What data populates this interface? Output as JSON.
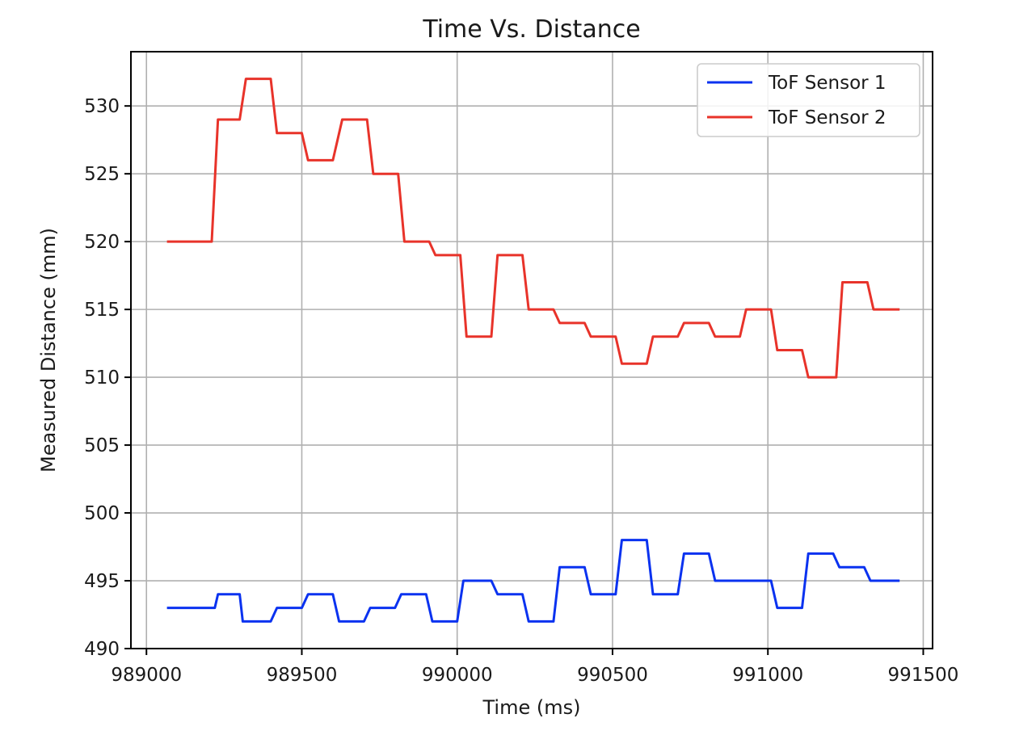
{
  "chart_data": {
    "type": "line",
    "title": "Time Vs. Distance",
    "xlabel": "Time (ms)",
    "ylabel": "Measured Distance (mm)",
    "xlim": [
      988950,
      991530
    ],
    "ylim": [
      490,
      534
    ],
    "xticks": [
      989000,
      989500,
      990000,
      990500,
      991000,
      991500
    ],
    "yticks": [
      490,
      495,
      500,
      505,
      510,
      515,
      520,
      525,
      530
    ],
    "grid": true,
    "legend_position": "top-right",
    "series": [
      {
        "name": "ToF Sensor 1",
        "color": "#0a32f0",
        "x": [
          989070,
          989120,
          989170,
          989220,
          989230,
          989300,
          989310,
          989330,
          989400,
          989420,
          989500,
          989520,
          989600,
          989620,
          989700,
          989720,
          989800,
          989820,
          989900,
          989920,
          990000,
          990020,
          990110,
          990130,
          990210,
          990230,
          990310,
          990330,
          990410,
          990430,
          990510,
          990530,
          990610,
          990630,
          990710,
          990730,
          990810,
          990830,
          990910,
          990940,
          991010,
          991030,
          991110,
          991130,
          991210,
          991230,
          991310,
          991330,
          991420
        ],
        "y": [
          493,
          493,
          493,
          493,
          494,
          494,
          492,
          492,
          492,
          493,
          493,
          494,
          494,
          492,
          492,
          493,
          493,
          494,
          494,
          492,
          492,
          495,
          495,
          494,
          494,
          492,
          492,
          496,
          496,
          494,
          494,
          498,
          498,
          494,
          494,
          497,
          497,
          495,
          495,
          495,
          495,
          493,
          493,
          497,
          497,
          496,
          496,
          495,
          495
        ]
      },
      {
        "name": "ToF Sensor 2",
        "color": "#e8332a",
        "x": [
          989070,
          989210,
          989230,
          989300,
          989320,
          989400,
          989420,
          989500,
          989520,
          989600,
          989630,
          989710,
          989730,
          989810,
          989830,
          989910,
          989930,
          990010,
          990030,
          990110,
          990130,
          990210,
          990230,
          990310,
          990330,
          990410,
          990430,
          990510,
          990530,
          990610,
          990630,
          990710,
          990730,
          990810,
          990830,
          990910,
          990930,
          991010,
          991030,
          991110,
          991130,
          991220,
          991240,
          991320,
          991340,
          991420
        ],
        "y": [
          520,
          520,
          529,
          529,
          532,
          532,
          528,
          528,
          526,
          526,
          529,
          529,
          525,
          525,
          520,
          520,
          519,
          519,
          513,
          513,
          519,
          519,
          515,
          515,
          514,
          514,
          513,
          513,
          511,
          511,
          513,
          513,
          514,
          514,
          513,
          513,
          515,
          515,
          512,
          512,
          510,
          510,
          517,
          517,
          515,
          515
        ]
      }
    ]
  }
}
